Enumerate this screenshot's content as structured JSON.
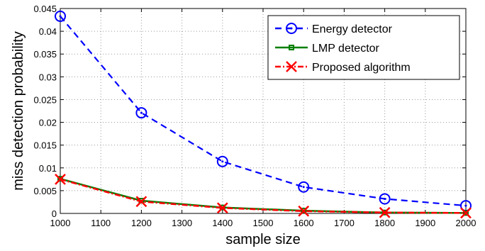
{
  "chart_data": {
    "type": "line",
    "title": "",
    "xlabel": "sample size",
    "ylabel": "miss detection probability",
    "xlim": [
      1000,
      2000
    ],
    "ylim": [
      0,
      0.045
    ],
    "xticks": [
      1000,
      1100,
      1200,
      1300,
      1400,
      1500,
      1600,
      1700,
      1800,
      1900,
      2000
    ],
    "yticks": [
      0,
      0.005,
      0.01,
      0.015,
      0.02,
      0.025,
      0.03,
      0.035,
      0.04,
      0.045
    ],
    "xtick_labels": [
      "1000",
      "1100",
      "1200",
      "1300",
      "1400",
      "1500",
      "1600",
      "1700",
      "1800",
      "1900",
      "2000"
    ],
    "ytick_labels": [
      "0",
      "0.005",
      "0.01",
      "0.015",
      "0.02",
      "0.025",
      "0.03",
      "0.035",
      "0.04",
      "0.045"
    ],
    "grid": true,
    "legend_position": "top-right",
    "x": [
      1000,
      1200,
      1400,
      1600,
      1800,
      2000
    ],
    "series": [
      {
        "name": "Energy detector",
        "values": [
          0.0433,
          0.0221,
          0.0114,
          0.0058,
          0.0032,
          0.0017
        ],
        "color": "#0000ff",
        "line_style": "dashed",
        "marker": "circle-dot"
      },
      {
        "name": "LMP detector",
        "values": [
          0.0076,
          0.0028,
          0.0013,
          0.0006,
          0.0002,
          0.0001
        ],
        "color": "#007f00",
        "line_style": "solid",
        "marker": "square"
      },
      {
        "name": "Proposed algorithm",
        "values": [
          0.0075,
          0.0026,
          0.0012,
          0.0005,
          0.0002,
          0.0001
        ],
        "color": "#ff0000",
        "line_style": "dash-dot",
        "marker": "x"
      }
    ]
  }
}
